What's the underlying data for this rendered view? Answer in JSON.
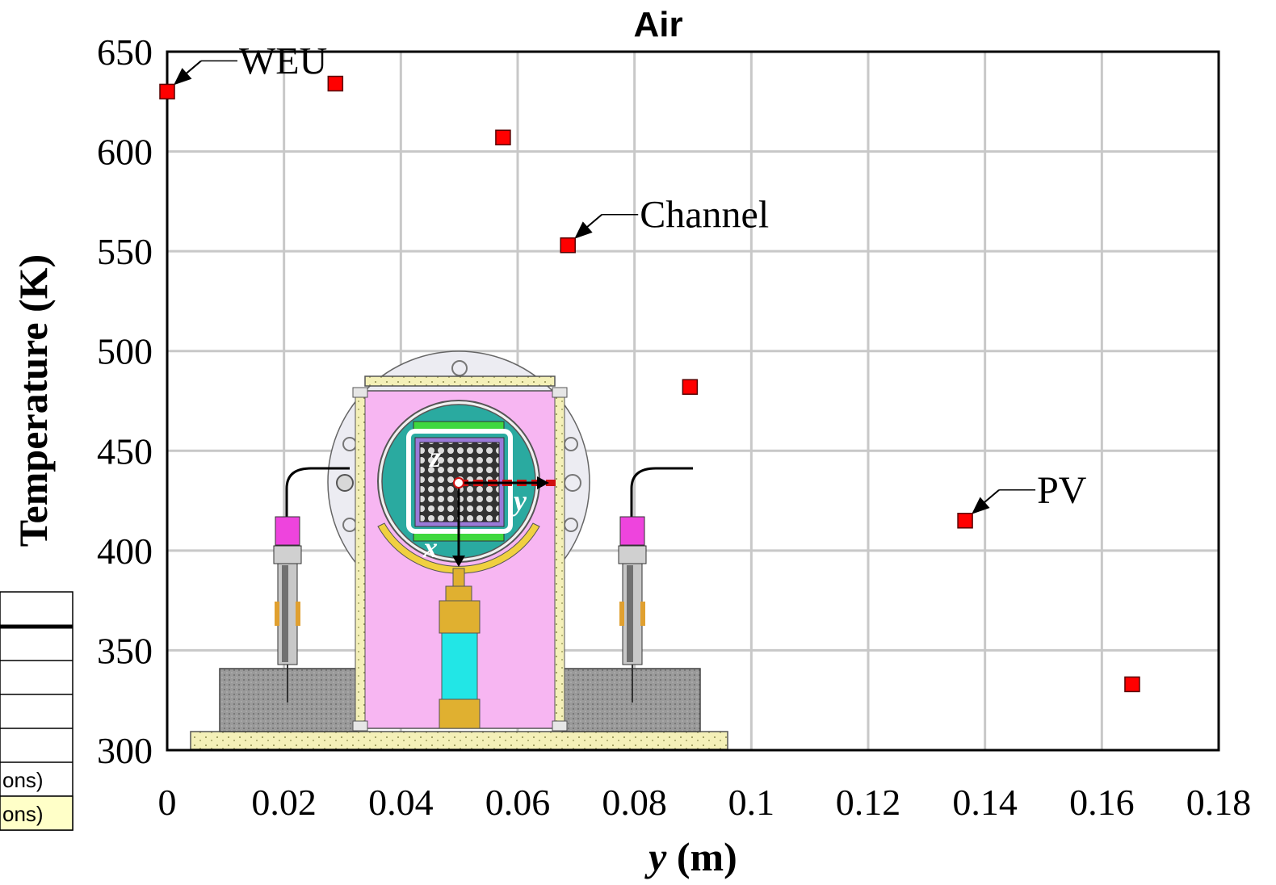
{
  "chart_data": {
    "type": "scatter",
    "title": "Air",
    "xlabel_var": "y",
    "xlabel_unit": " (m)",
    "ylabel": "Temperature (K)",
    "xlim": [
      0,
      0.18
    ],
    "ylim": [
      300,
      650
    ],
    "xticks": [
      "0",
      "0.02",
      "0.04",
      "0.06",
      "0.08",
      "0.1",
      "0.12",
      "0.14",
      "0.16",
      "0.18"
    ],
    "yticks": [
      "300",
      "350",
      "400",
      "450",
      "500",
      "550",
      "600",
      "650"
    ],
    "grid": true,
    "marker_color": "#ff0000",
    "series": [
      {
        "x": [
          0.0,
          0.0288,
          0.0575,
          0.0686,
          0.0895,
          0.1366,
          0.1652
        ],
        "y": [
          630,
          634,
          607,
          553,
          482,
          415,
          333
        ]
      }
    ],
    "annotations": [
      {
        "label": "WEU",
        "x": 0.0,
        "y": 630
      },
      {
        "label": "Channel",
        "x": 0.0686,
        "y": 553
      },
      {
        "label": "PV",
        "x": 0.1366,
        "y": 415
      }
    ],
    "partial_legend": [
      "ons)",
      "ons)"
    ]
  }
}
